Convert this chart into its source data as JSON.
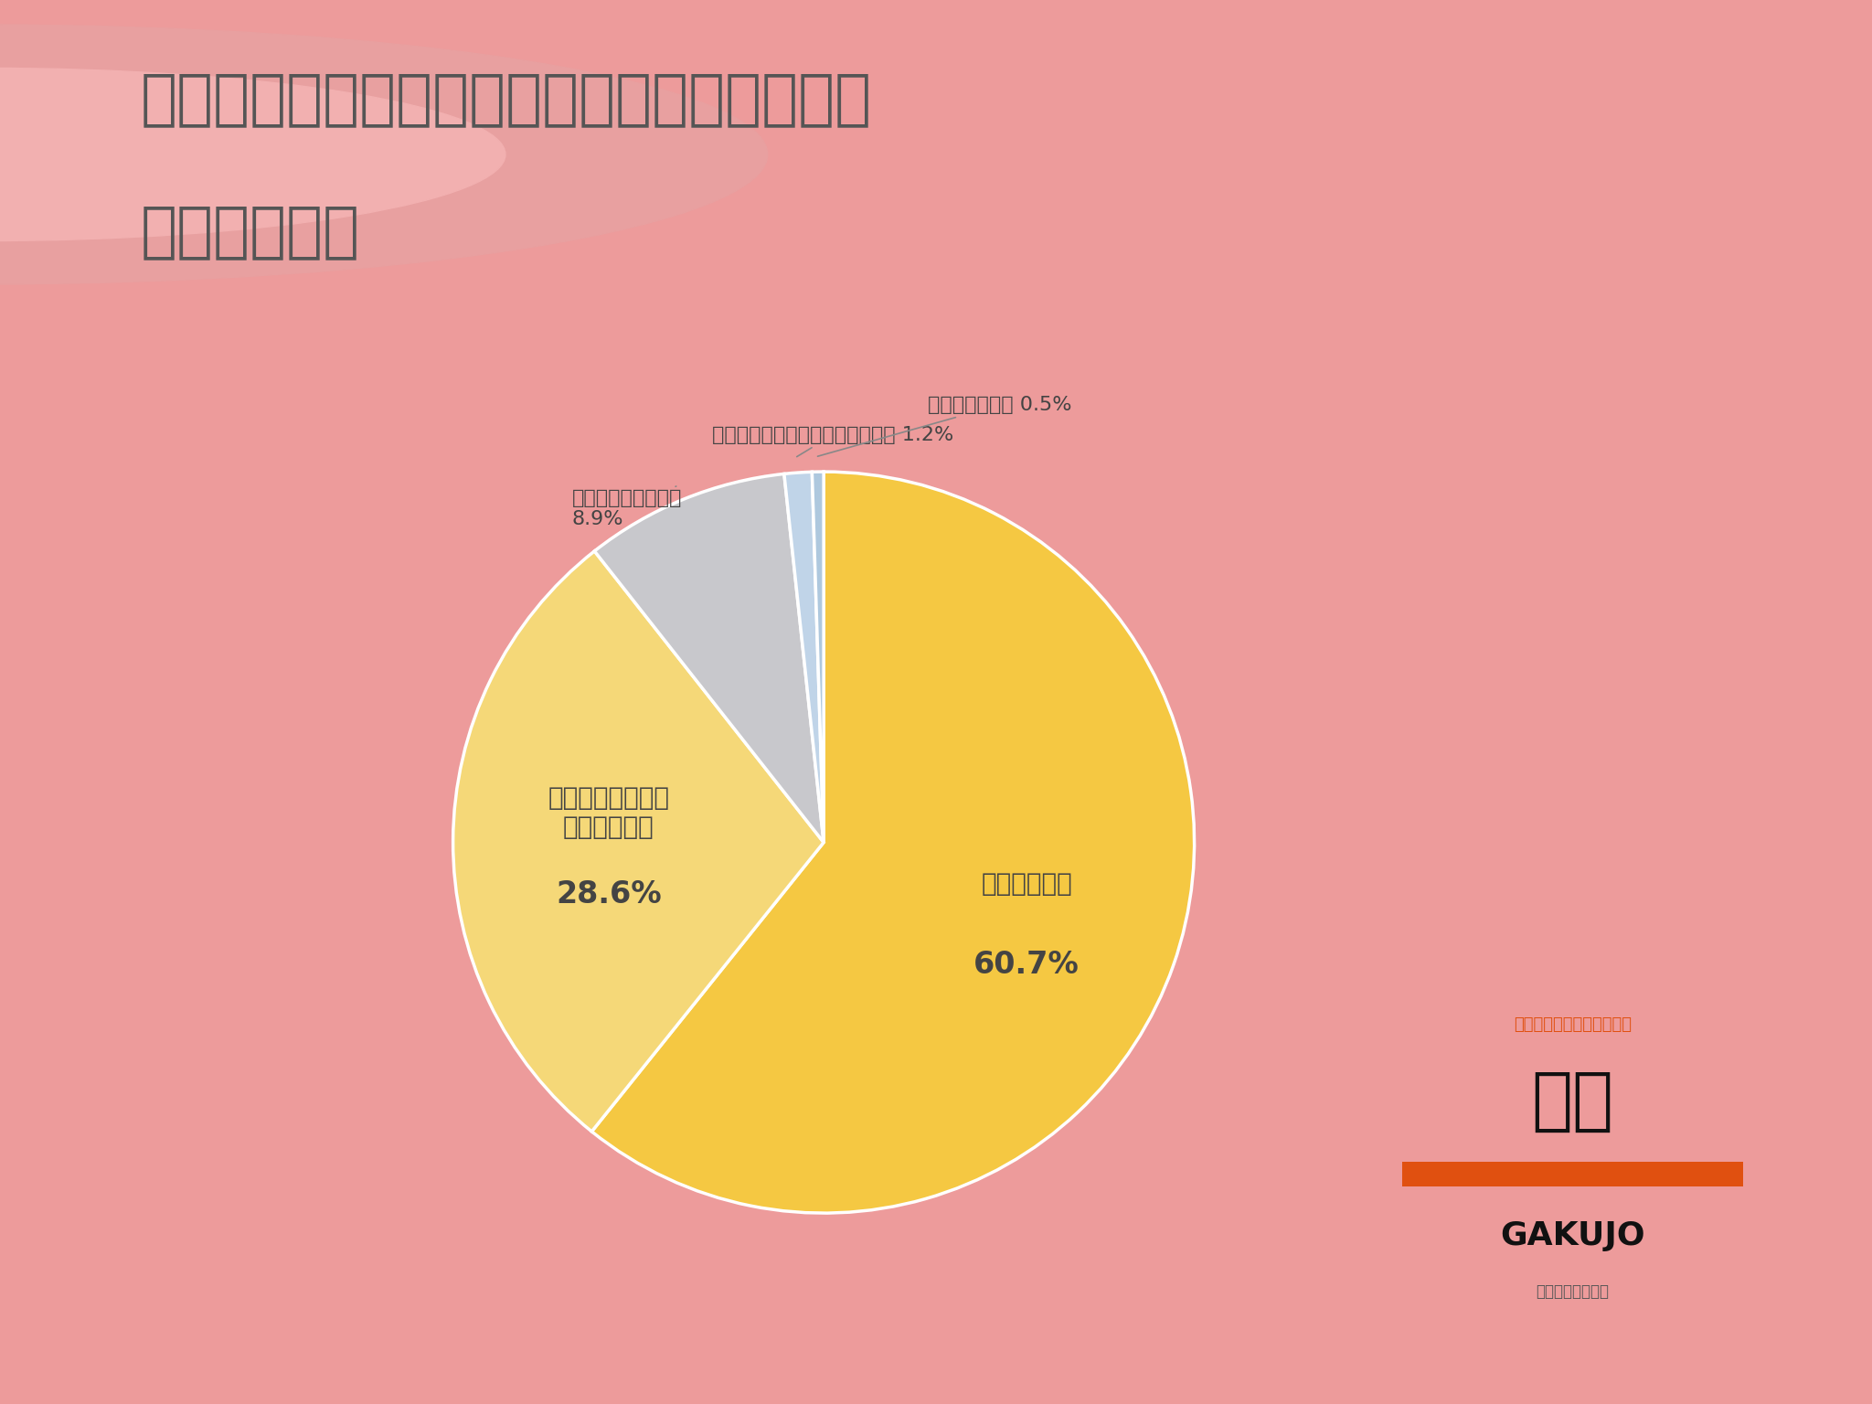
{
  "title_line1": "フレックスタイム制を導入する企業は魅力を",
  "title_line2": "感じますか？",
  "title_color": "#555555",
  "title_bg_color": "#f2b0b0",
  "chart_bg_color": "#ffffff",
  "outer_bg_color": "#ed9b9b",
  "slices": [
    {
      "label": "魅力を感じる",
      "pct": 60.7,
      "color": "#f5c842",
      "text_in": true
    },
    {
      "label": "どちらかと言えば\n魅力を感じる",
      "pct": 28.6,
      "color": "#f5d878",
      "text_in": true
    },
    {
      "label": "どちらとも言えない",
      "pct": 8.9,
      "color": "#c8c8cc",
      "text_in": false
    },
    {
      "label": "どちらかと言えば魅力を感じない",
      "pct": 1.2,
      "color": "#c0d4e8",
      "text_in": false
    },
    {
      "label": "魅力を感じない",
      "pct": 0.5,
      "color": "#aec8de",
      "text_in": false
    }
  ],
  "slice_label_fontsize": 20,
  "slice_pct_fontsize": 24,
  "outer_label_fontsize": 16,
  "brand_tagline": "つくるのは、未来の選択肢",
  "brand_name": "学情",
  "brand_en": "GAKUJO",
  "brand_sub": "東証プライム上場",
  "brand_tagline_color": "#e05010",
  "brand_bar_color": "#e05010",
  "wedge_linewidth": 2.5,
  "wedge_linecolor": "#ffffff",
  "startangle": 90
}
